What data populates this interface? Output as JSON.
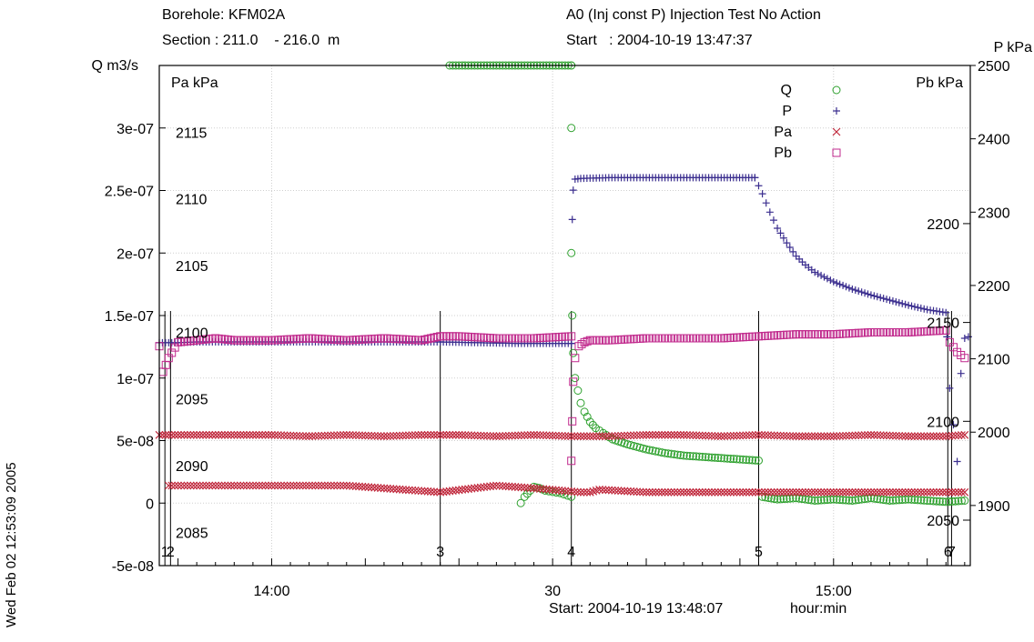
{
  "header": {
    "borehole": "Borehole: KFM02A",
    "section": "Section : 211.0    - 216.0  m",
    "test": "A0 (Inj const P) Injection Test No Action",
    "start": "Start   : 2004-10-19 13:47:37"
  },
  "side_stamp": "Wed Feb 02 12:53:09 2005",
  "chart_data": {
    "type": "scatter",
    "x_axis": {
      "unit_label": "hour:min",
      "start_label": "Start: 2004-10-19 13:48:07",
      "range_min": [
        0,
        43.3
      ],
      "ticks": [
        {
          "min": 6,
          "label": "14:00"
        },
        {
          "min": 21,
          "label": "30"
        },
        {
          "min": 36,
          "label": "15:00"
        }
      ]
    },
    "axes": {
      "Q": {
        "label": "Q  m3/s",
        "side": "left",
        "range": [
          -5e-08,
          3.5e-07
        ],
        "ticks": [
          {
            "v": -5e-08,
            "t": "-5e-08"
          },
          {
            "v": 0,
            "t": "0"
          },
          {
            "v": 5e-08,
            "t": "5e-08"
          },
          {
            "v": 1e-07,
            "t": "1e-07"
          },
          {
            "v": 1.5e-07,
            "t": "1.5e-07"
          },
          {
            "v": 2e-07,
            "t": "2e-07"
          },
          {
            "v": 2.5e-07,
            "t": "2.5e-07"
          },
          {
            "v": 3e-07,
            "t": "3e-07"
          }
        ]
      },
      "Pa": {
        "label": "Pa  kPa",
        "side": "inner-left",
        "range": [
          2082.5,
          2120
        ],
        "ticks": [
          2085,
          2090,
          2095,
          2100,
          2105,
          2110,
          2115
        ]
      },
      "Pb": {
        "label": "Pb  kPa",
        "side": "inner-right",
        "range": [
          2027,
          2280
        ],
        "ticks": [
          2050,
          2100,
          2150,
          2200
        ]
      },
      "P": {
        "label": "P  kPa",
        "side": "right",
        "range": [
          1818,
          2500
        ],
        "ticks": [
          1900,
          2000,
          2100,
          2200,
          2300,
          2400,
          2500
        ]
      }
    },
    "event_lines": [
      {
        "min": 0.3,
        "label": "1"
      },
      {
        "min": 0.6,
        "label": "2"
      },
      {
        "min": 15.0,
        "label": "3"
      },
      {
        "min": 22.0,
        "label": "4"
      },
      {
        "min": 32.0,
        "label": "5"
      },
      {
        "min": 42.1,
        "label": "6"
      },
      {
        "min": 42.3,
        "label": "7"
      }
    ],
    "legend": {
      "placement": "top-right",
      "entries": [
        {
          "name": "Q",
          "marker": "circle",
          "color": "#2ca02c"
        },
        {
          "name": "P",
          "marker": "plus",
          "color": "#3b2e8f"
        },
        {
          "name": "Pa",
          "marker": "x",
          "color": "#c0283c"
        },
        {
          "name": "Pb",
          "marker": "square",
          "color": "#c0288c"
        }
      ]
    },
    "grid": true,
    "series": [
      {
        "name": "Q",
        "axis": "Q",
        "marker": "circle",
        "color": "#2ca02c",
        "segments": [
          {
            "x": [
              15.5,
              16.5,
              17.5,
              18.5,
              19.0,
              19.5,
              20.0,
              21.0,
              22.0,
              22.0
            ],
            "y": [
              3.5e-07,
              3.5e-07,
              3.5e-07,
              3.5e-07,
              3.5e-07,
              3.5e-07,
              3.5e-07,
              3.5e-07,
              3.5e-07,
              3.5e-07
            ]
          },
          {
            "x": [
              19.3,
              19.5,
              19.8,
              20.0,
              20.3,
              20.6,
              21.0,
              21.4,
              21.8,
              22.0
            ],
            "y": [
              0,
              5e-09,
              1e-08,
              1.3e-08,
              1.2e-08,
              1e-08,
              9e-09,
              8e-09,
              6e-09,
              5e-09
            ]
          },
          {
            "x": [
              22.0,
              22.0,
              22.05,
              22.1,
              22.2,
              22.35,
              22.5,
              22.7,
              23.0,
              23.3,
              23.7,
              24.2,
              25.0,
              26.0,
              27.0,
              28.0,
              29.0,
              30.0,
              31.0,
              32.0
            ],
            "y": [
              3e-07,
              2e-07,
              1.5e-07,
              1.2e-07,
              1e-07,
              9e-08,
              8e-08,
              7.3e-08,
              6.5e-08,
              6e-08,
              5.6e-08,
              5.1e-08,
              4.7e-08,
              4.3e-08,
              4e-08,
              3.8e-08,
              3.7e-08,
              3.6e-08,
              3.5e-08,
              3.4e-08
            ]
          },
          {
            "x": [
              32.2,
              33.0,
              34.0,
              35.0,
              36.0,
              37.0,
              38.0,
              39.0,
              40.0,
              41.0,
              42.0,
              43.0
            ],
            "y": [
              5e-09,
              3e-09,
              4e-09,
              2e-09,
              3e-09,
              2e-09,
              4e-09,
              2e-09,
              3e-09,
              2e-09,
              1e-09,
              2e-09
            ]
          }
        ]
      },
      {
        "name": "P",
        "axis": "P",
        "marker": "plus",
        "color": "#3b2e8f",
        "segments": [
          {
            "x": [
              0,
              1,
              2,
              4,
              6,
              8,
              10,
              12,
              14,
              15
            ],
            "y": [
              2122,
              2122,
              2123,
              2123,
              2123,
              2123,
              2123,
              2123,
              2123,
              2123
            ]
          },
          {
            "x": [
              15,
              17,
              19,
              21,
              22
            ],
            "y": [
              2123,
              2122,
              2121,
              2121,
              2121
            ]
          },
          {
            "x": [
              22.0,
              22.05,
              22.1,
              22.2,
              22.5,
              24,
              26,
              28,
              30,
              31.8
            ],
            "y": [
              2121,
              2290,
              2330,
              2345,
              2346,
              2347,
              2347,
              2347,
              2347,
              2347
            ]
          },
          {
            "x": [
              31.8,
              32.2,
              32.6,
              33.0,
              33.5,
              34.0,
              34.5,
              35.0,
              36.0,
              37.0,
              38.0,
              39.0,
              40.0,
              41.0,
              42.0
            ],
            "y": [
              2347,
              2325,
              2300,
              2278,
              2258,
              2240,
              2228,
              2218,
              2205,
              2195,
              2187,
              2180,
              2173,
              2167,
              2163
            ]
          },
          {
            "x": [
              42.05,
              42.2,
              42.4,
              42.6,
              42.8,
              43.0,
              43.2
            ],
            "y": [
              2130,
              2060,
              2010,
              1960,
              2080,
              2128,
              2130
            ]
          }
        ]
      },
      {
        "name": "Pa",
        "axis": "Pa",
        "marker": "x",
        "color": "#c0283c",
        "segments": [
          {
            "x": [
              0,
              2,
              4,
              6,
              8,
              10,
              12,
              14,
              16,
              18,
              20,
              22,
              24,
              26,
              28,
              30,
              32,
              34,
              36,
              38,
              40,
              42,
              43
            ],
            "y": [
              2092.3,
              2092.3,
              2092.3,
              2092.3,
              2092.2,
              2092.3,
              2092.2,
              2092.3,
              2092.3,
              2092.2,
              2092.3,
              2092.2,
              2092.2,
              2092.3,
              2092.3,
              2092.2,
              2092.3,
              2092.2,
              2092.2,
              2092.3,
              2092.2,
              2092.2,
              2092.3
            ]
          },
          {
            "x": [
              0.5,
              1.5,
              2.5,
              3.5,
              6,
              10,
              15,
              18,
              20,
              22.5,
              23.0,
              23.5,
              26,
              30,
              32.5,
              38,
              42.5,
              43
            ],
            "y": [
              2088.5,
              2088.5,
              2088.5,
              2088.5,
              2088.5,
              2088.5,
              2088.0,
              2088.5,
              2088.3,
              2088.0,
              2088.0,
              2088.2,
              2088.0,
              2088.0,
              2088.0,
              2088.0,
              2088.0,
              2088.0
            ]
          }
        ]
      },
      {
        "name": "Pb",
        "axis": "Pb",
        "marker": "square",
        "color": "#c0288c",
        "segments": [
          {
            "x": [
              0,
              0.2,
              0.5,
              1,
              2,
              3,
              4,
              6,
              8,
              10,
              12,
              14,
              15,
              16,
              18,
              20,
              22
            ],
            "y": [
              2138,
              2125,
              2132,
              2140,
              2141,
              2142,
              2141,
              2141,
              2142,
              2141,
              2142,
              2141,
              2143,
              2143,
              2142,
              2142,
              2143
            ]
          },
          {
            "x": [
              22.0,
              22.05,
              22.1,
              22.2,
              22.4,
              22.7,
              23.0,
              24,
              26,
              28,
              30,
              32,
              34,
              36,
              38,
              40,
              42
            ],
            "y": [
              2080,
              2100,
              2120,
              2132,
              2138,
              2140,
              2141,
              2141,
              2142,
              2142,
              2142,
              2143,
              2144,
              2144,
              2145,
              2145,
              2146
            ]
          },
          {
            "x": [
              42.2,
              42.6,
              43.0
            ],
            "y": [
              2140,
              2135,
              2132
            ]
          }
        ]
      }
    ]
  }
}
